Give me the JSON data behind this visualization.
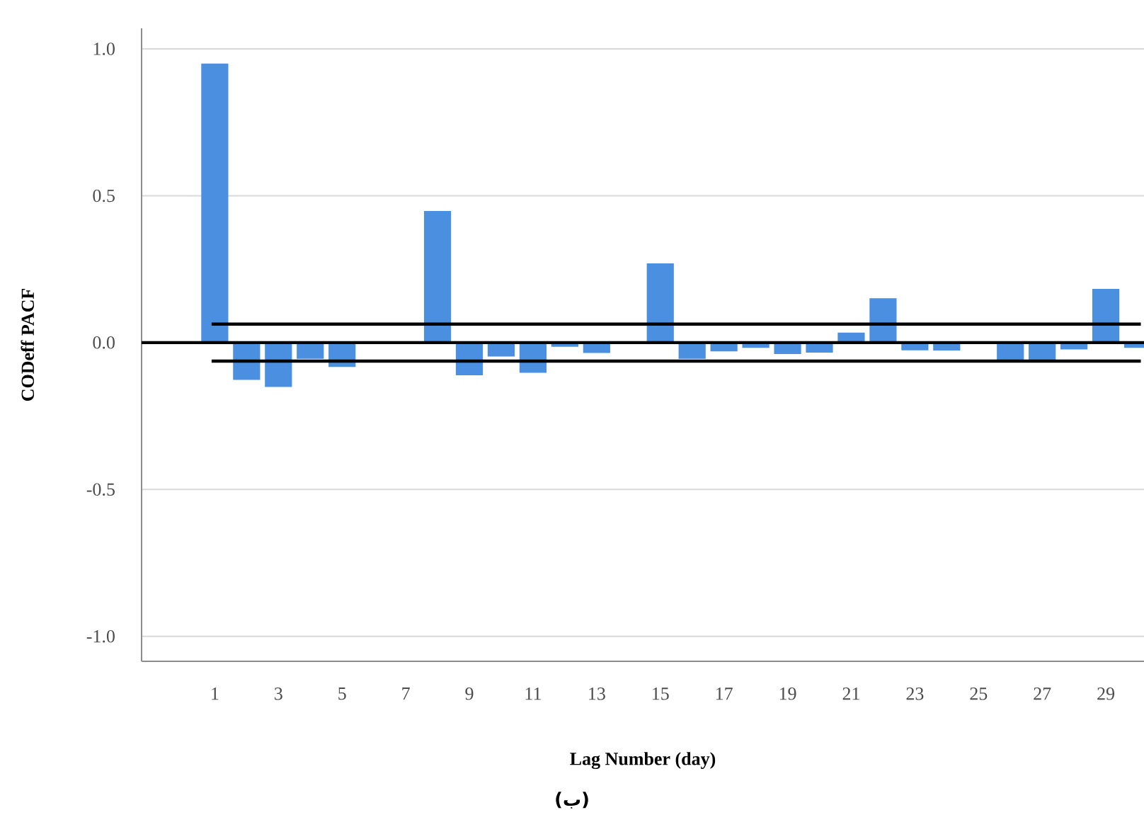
{
  "chart_data": {
    "type": "bar",
    "ylabel": "CODeff  PACF",
    "xlabel": "Lag Number (day)",
    "categories": [
      "1",
      null,
      "3",
      null,
      "5",
      null,
      "7",
      null,
      "9",
      null,
      "11",
      null,
      "13",
      null,
      "15",
      null,
      "17",
      null,
      "19",
      null,
      "21",
      null,
      "23",
      null,
      "25",
      null,
      "27",
      null,
      "29",
      null
    ],
    "values": [
      0.95,
      -0.127,
      -0.151,
      -0.055,
      -0.083,
      0,
      0,
      0.448,
      -0.111,
      -0.047,
      -0.103,
      -0.014,
      -0.035,
      0,
      0.27,
      -0.055,
      -0.03,
      -0.018,
      -0.039,
      -0.034,
      0.034,
      0.151,
      -0.026,
      -0.027,
      0,
      -0.059,
      -0.059,
      -0.023,
      0.183,
      -0.018
    ],
    "color": "#4a8fe0",
    "ylim": [
      -1.085,
      1.07
    ],
    "yticks": [
      {
        "value": -1,
        "label": "-1.0"
      },
      {
        "value": -0.5,
        "label": "-0.5"
      },
      {
        "value": 0,
        "label": "0.0"
      },
      {
        "value": 0.5,
        "label": "0.5"
      },
      {
        "value": 1,
        "label": "1.0"
      }
    ],
    "grid": "y",
    "ref_lines": [
      {
        "axis": "y",
        "value": 0,
        "color": "#000000"
      },
      {
        "axis": "y",
        "value": 0.063,
        "color": "#000000"
      },
      {
        "axis": "y",
        "value": -0.063,
        "color": "#000000"
      }
    ],
    "annotations": [
      "(ب)"
    ]
  }
}
